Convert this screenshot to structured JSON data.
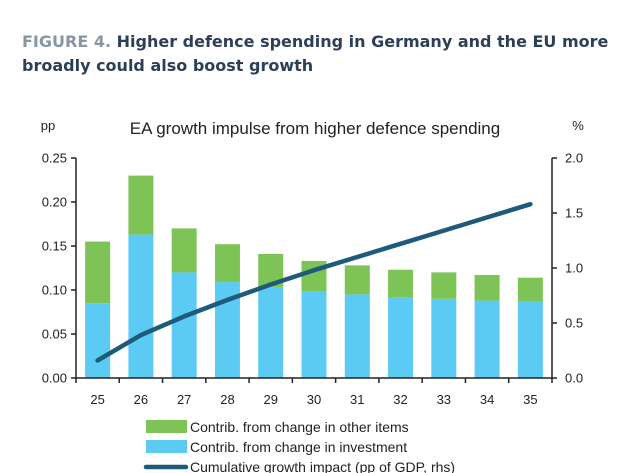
{
  "figure": {
    "label": "FIGURE 4.",
    "title": "Higher defence spending in Germany and the EU more broadly could also boost growth"
  },
  "colors": {
    "investment": "#5ccbf4",
    "other": "#7dc355",
    "line": "#1e5a7a",
    "axis": "#222222"
  },
  "chart_data": {
    "type": "bar",
    "title": "EA growth impulse from higher defence spending",
    "ylabel": "pp",
    "y2label": "%",
    "categories": [
      "25",
      "26",
      "27",
      "28",
      "29",
      "30",
      "31",
      "32",
      "33",
      "34",
      "35"
    ],
    "ylim": [
      0,
      0.25
    ],
    "yticks": [
      "0.00",
      "0.05",
      "0.10",
      "0.15",
      "0.20",
      "0.25"
    ],
    "y2lim": [
      0,
      2.0
    ],
    "y2ticks": [
      "0.0",
      "0.5",
      "1.0",
      "1.5",
      "2.0"
    ],
    "stacked": true,
    "series": [
      {
        "name": "Contrib. from change in investment",
        "kind": "bar",
        "values": [
          0.085,
          0.163,
          0.12,
          0.109,
          0.103,
          0.098,
          0.095,
          0.092,
          0.09,
          0.088,
          0.087
        ]
      },
      {
        "name": "Contrib. from change in other items",
        "kind": "bar",
        "values": [
          0.07,
          0.067,
          0.05,
          0.043,
          0.038,
          0.035,
          0.033,
          0.031,
          0.03,
          0.029,
          0.027
        ]
      },
      {
        "name": "Cumulative growth impact (pp of GDP, rhs)",
        "kind": "line",
        "axis": "right",
        "values": [
          0.16,
          0.39,
          0.56,
          0.71,
          0.85,
          0.98,
          1.1,
          1.22,
          1.34,
          1.46,
          1.58
        ]
      }
    ],
    "legend": [
      "Contrib. from change in other items",
      "Contrib. from change in investment",
      "Cumulative growth impact (pp of GDP, rhs)"
    ],
    "legend_position": "bottom"
  }
}
